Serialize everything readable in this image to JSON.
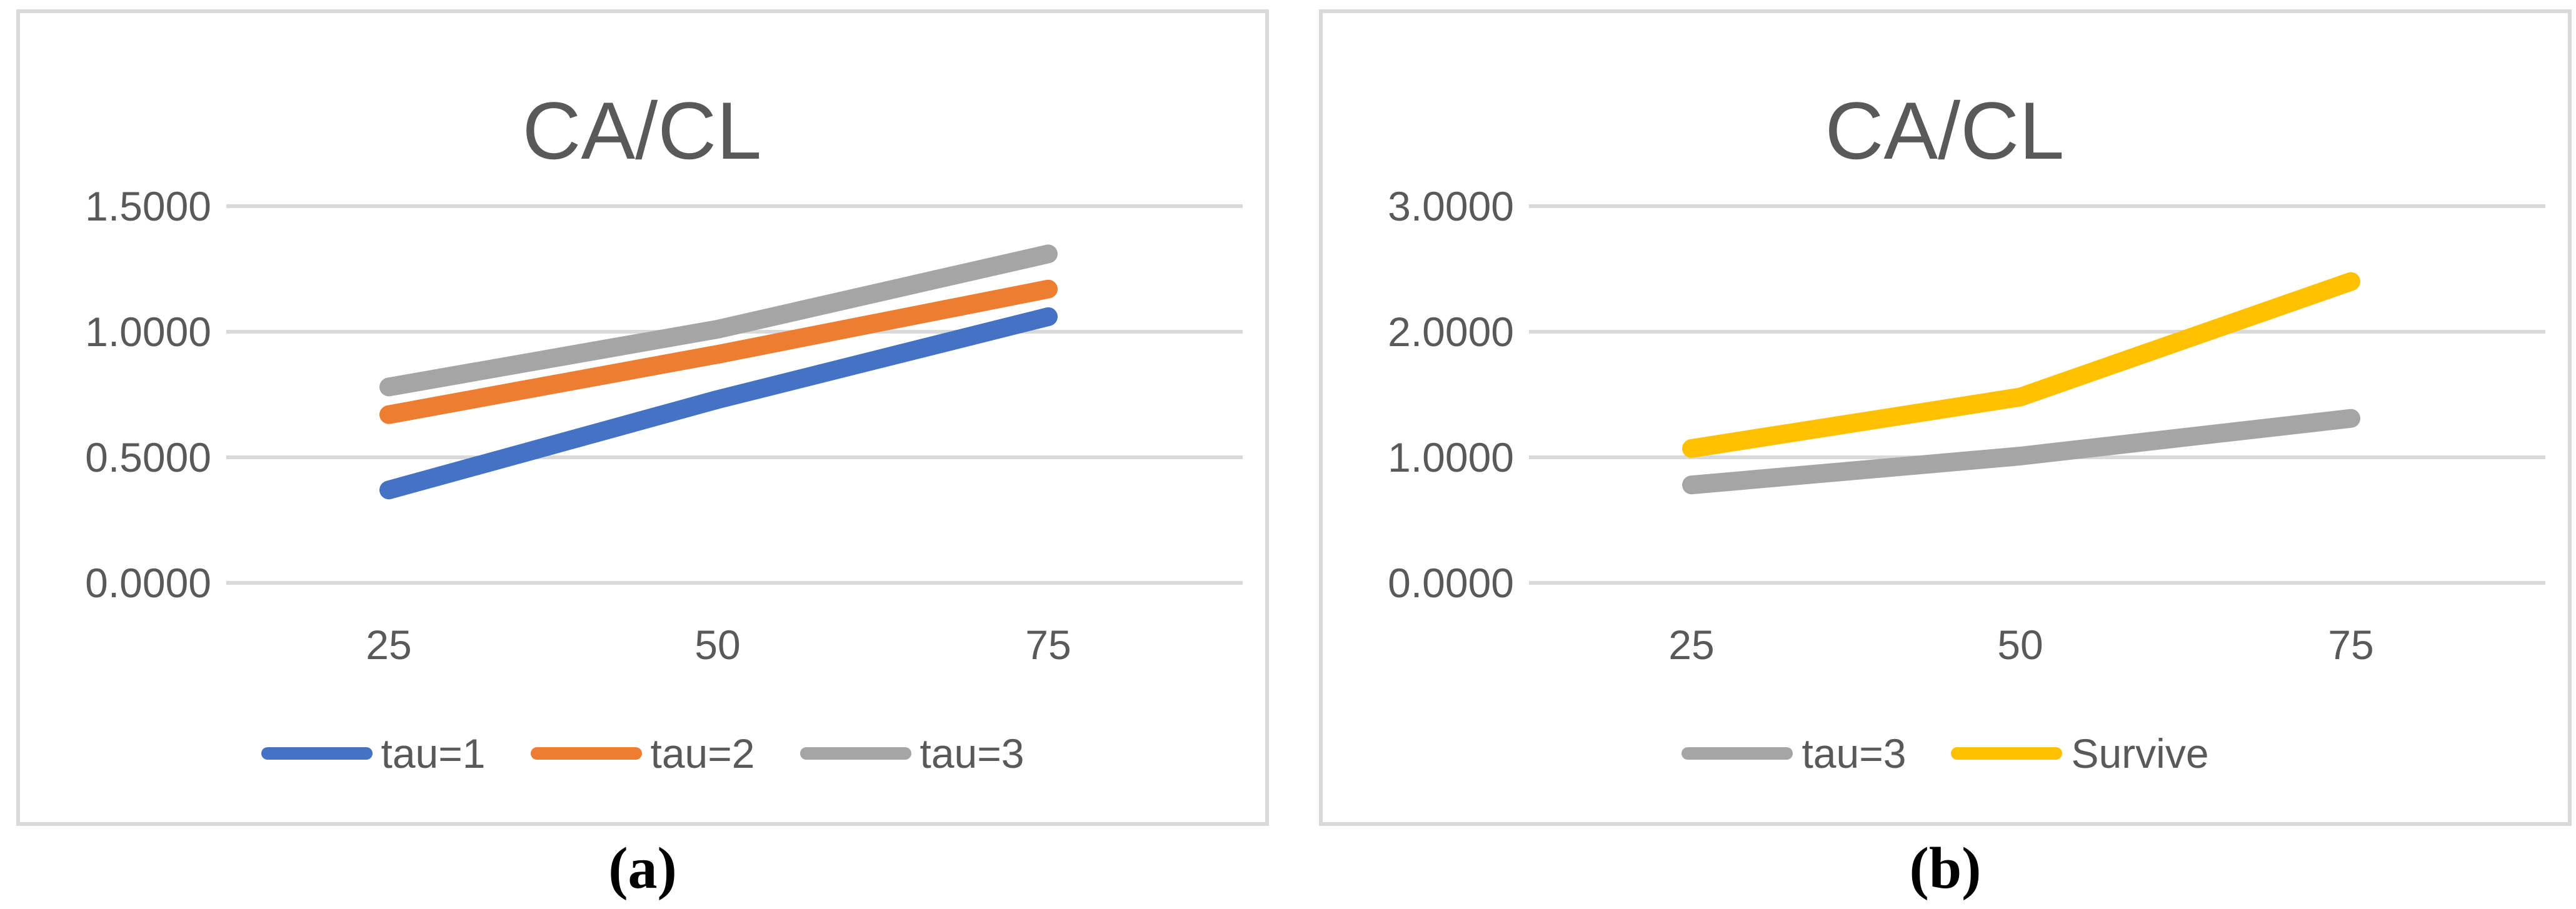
{
  "colors": {
    "grid": "#D9D9D9",
    "panel_border": "#D9D9D9",
    "axis_text": "#595959",
    "title_text": "#595959",
    "caption_text": "#000000",
    "background": "#FFFFFF",
    "series_blue": "#4472C4",
    "series_orange": "#ED7D31",
    "series_gray": "#A5A5A5",
    "series_yellow": "#FFC000"
  },
  "chart_data": [
    {
      "type": "line",
      "title": "CA/CL",
      "caption": "(a)",
      "categories": [
        "25",
        "50",
        "75"
      ],
      "ylim": [
        0,
        1.5
      ],
      "ytick_labels": [
        "1.5000",
        "1.0000",
        "0.5000",
        "0.0000"
      ],
      "grid": "horizontal",
      "legend_position": "bottom",
      "series": [
        {
          "name": "tau=1",
          "color": "#4472C4",
          "values": [
            0.37,
            0.73,
            1.06
          ]
        },
        {
          "name": "tau=2",
          "color": "#ED7D31",
          "values": [
            0.67,
            0.91,
            1.17
          ]
        },
        {
          "name": "tau=3",
          "color": "#A5A5A5",
          "values": [
            0.78,
            1.01,
            1.31
          ]
        }
      ]
    },
    {
      "type": "line",
      "title": "CA/CL",
      "caption": "(b)",
      "categories": [
        "25",
        "50",
        "75"
      ],
      "ylim": [
        0,
        3.0
      ],
      "ytick_labels": [
        "3.0000",
        "2.0000",
        "1.0000",
        "0.0000"
      ],
      "grid": "horizontal",
      "legend_position": "bottom",
      "series": [
        {
          "name": "tau=3",
          "color": "#A5A5A5",
          "values": [
            0.78,
            1.01,
            1.31
          ]
        },
        {
          "name": "Survive",
          "color": "#FFC000",
          "values": [
            1.07,
            1.48,
            2.4
          ]
        }
      ]
    }
  ]
}
